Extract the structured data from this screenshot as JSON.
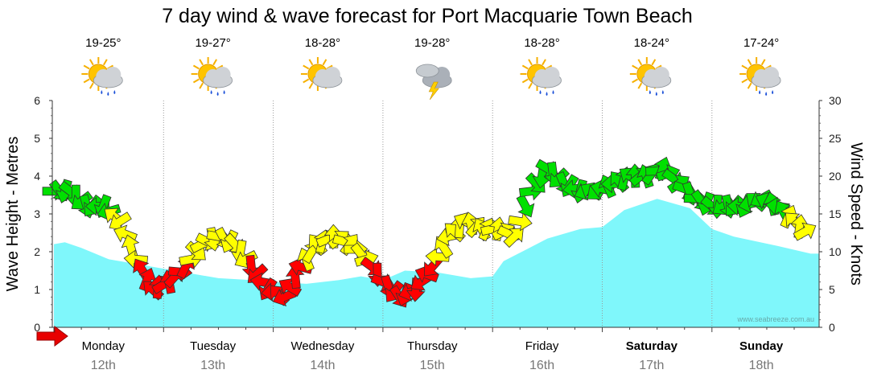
{
  "chart_data": {
    "type": "area",
    "title": "7 day wind & wave forecast for Port Macquarie Town Beach",
    "ylabel_left": "Wave Height - Metres",
    "ylabel_right": "Wind Speed - Knots",
    "ylim_left": [
      0,
      6
    ],
    "ylim_right": [
      0,
      30
    ],
    "yticks_left": [
      "0",
      "1",
      "2",
      "3",
      "4",
      "5",
      "6"
    ],
    "yticks_right": [
      "0",
      "5",
      "10",
      "15",
      "20",
      "25",
      "30"
    ],
    "grid": true,
    "days": [
      {
        "name": "Monday",
        "date": "12th",
        "temp": "19-25°",
        "icon": "sun-cloud-rain-icon",
        "bold": false
      },
      {
        "name": "Tuesday",
        "date": "13th",
        "temp": "19-27°",
        "icon": "sun-cloud-rain-icon",
        "bold": false
      },
      {
        "name": "Wednesday",
        "date": "14th",
        "temp": "18-28°",
        "icon": "sun-cloud-icon",
        "bold": false
      },
      {
        "name": "Thursday",
        "date": "15th",
        "temp": "19-28°",
        "icon": "storm-cloud-icon",
        "bold": false
      },
      {
        "name": "Friday",
        "date": "16th",
        "temp": "18-28°",
        "icon": "sun-cloud-rain-icon",
        "bold": false
      },
      {
        "name": "Saturday",
        "date": "17th",
        "temp": "18-24°",
        "icon": "sun-cloud-rain-icon",
        "bold": true
      },
      {
        "name": "Sunday",
        "date": "18th",
        "temp": "17-24°",
        "icon": "sun-cloud-rain-icon",
        "bold": true
      }
    ],
    "wave_height": {
      "x_days": [
        0,
        0.1,
        0.25,
        0.5,
        0.8,
        1.0,
        1.2,
        1.5,
        1.8,
        2.0,
        2.3,
        2.6,
        2.8,
        3.0,
        3.2,
        3.5,
        3.8,
        4.0,
        4.1,
        4.3,
        4.5,
        4.8,
        5.0,
        5.2,
        5.5,
        5.8,
        6.0,
        6.2,
        6.6,
        6.9
      ],
      "values": [
        2.2,
        2.25,
        2.1,
        1.8,
        1.65,
        1.55,
        1.45,
        1.3,
        1.25,
        1.2,
        1.15,
        1.25,
        1.35,
        1.25,
        1.5,
        1.45,
        1.3,
        1.35,
        1.75,
        2.05,
        2.35,
        2.6,
        2.65,
        3.1,
        3.4,
        3.15,
        2.6,
        2.4,
        2.15,
        1.95
      ]
    },
    "wind_speed": {
      "x_days": [
        0,
        0.15,
        0.3,
        0.45,
        0.6,
        0.75,
        0.9,
        1.05,
        1.2,
        1.35,
        1.5,
        1.65,
        1.8,
        1.95,
        2.1,
        2.25,
        2.4,
        2.55,
        2.7,
        2.85,
        3.0,
        3.15,
        3.3,
        3.45,
        3.6,
        3.75,
        3.9,
        4.05,
        4.2,
        4.35,
        4.5,
        4.65,
        4.8,
        4.95,
        5.1,
        5.25,
        5.4,
        5.55,
        5.7,
        5.85,
        6.0,
        6.15,
        6.3,
        6.45,
        6.6,
        6.75,
        6.9
      ],
      "knots": [
        18,
        18,
        16,
        16,
        14,
        9,
        5,
        6,
        8,
        11,
        12,
        11,
        8,
        5,
        4,
        8,
        11,
        12,
        11,
        9,
        6,
        4,
        5,
        8,
        12,
        14,
        13,
        13,
        12,
        18,
        21,
        19,
        18,
        18,
        19,
        20,
        20,
        21,
        19,
        17,
        16,
        16,
        16,
        17,
        16,
        14,
        12
      ]
    },
    "wind_color_scale": [
      {
        "max_knots": 8,
        "color": "#ff0000"
      },
      {
        "max_knots": 15,
        "color": "#ffff00"
      },
      {
        "max_knots": 30,
        "color": "#00e000"
      }
    ],
    "fill_color": "#7ff7fb",
    "watermark": "www.seabreeze.com.au"
  }
}
